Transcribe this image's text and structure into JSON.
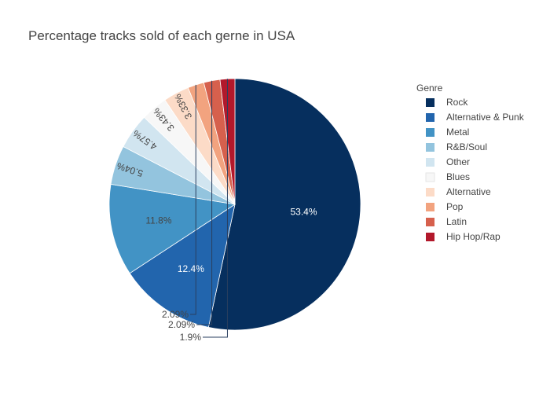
{
  "chart_data": {
    "type": "pie",
    "title": "Percentage tracks sold of each gerne in USA",
    "legend_title": "Genre",
    "legend_position": "right",
    "slices": [
      {
        "label": "Rock",
        "value": 53.4,
        "text": "53.4%",
        "color": "#062f5e"
      },
      {
        "label": "Alternative & Punk",
        "value": 12.4,
        "text": "12.4%",
        "color": "#2265ad"
      },
      {
        "label": "Metal",
        "value": 11.8,
        "text": "11.8%",
        "color": "#4293c5"
      },
      {
        "label": "R&B/Soul",
        "value": 5.04,
        "text": "5.04%",
        "color": "#93c4de"
      },
      {
        "label": "Other",
        "value": 4.57,
        "text": "4.57%",
        "color": "#d1e5f0"
      },
      {
        "label": "Blues",
        "value": 3.43,
        "text": "3.43%",
        "color": "#f7f7f7"
      },
      {
        "label": "Alternative",
        "value": 3.33,
        "text": "3.33%",
        "color": "#fcdbc7"
      },
      {
        "label": "Pop",
        "value": 2.09,
        "text": "2.09%",
        "color": "#f2a37f"
      },
      {
        "label": "Latin",
        "value": 2.09,
        "text": "2.09%",
        "color": "#d6604d"
      },
      {
        "label": "Hip Hop/Rap",
        "value": 1.9,
        "text": "1.9%",
        "color": "#b2182b"
      }
    ]
  }
}
